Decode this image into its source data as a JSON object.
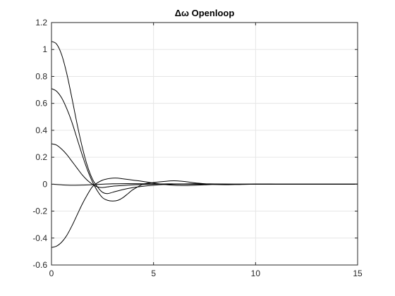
{
  "chart_data": {
    "type": "line",
    "title": "Δω Openloop",
    "xlabel": "",
    "ylabel": "",
    "xlim": [
      0,
      15
    ],
    "ylim": [
      -0.6,
      1.2
    ],
    "xticks": [
      0,
      5,
      10,
      15
    ],
    "yticks": [
      -0.6,
      -0.4,
      -0.2,
      0,
      0.2,
      0.4,
      0.6,
      0.8,
      1,
      1.2
    ],
    "xtick_labels": [
      "0",
      "5",
      "10",
      "15"
    ],
    "ytick_labels": [
      "-0.6",
      "-0.4",
      "-0.2",
      "0",
      "0.2",
      "0.4",
      "0.6",
      "0.8",
      "1",
      "1.2"
    ],
    "grid": true,
    "box": true,
    "line_color": "#000000",
    "series": [
      {
        "x": [
          0,
          0.25,
          0.5,
          0.75,
          1,
          1.25,
          1.5,
          1.75,
          2,
          2.25,
          2.5,
          2.75,
          3,
          3.5,
          4,
          4.5,
          5,
          5.5,
          6,
          7,
          8,
          9,
          10,
          11,
          12,
          13,
          14,
          15
        ],
        "values": [
          1.06,
          1.04,
          0.96,
          0.82,
          0.64,
          0.45,
          0.28,
          0.14,
          0.04,
          -0.02,
          -0.06,
          -0.07,
          -0.06,
          -0.04,
          -0.025,
          -0.015,
          -0.008,
          -0.003,
          0.0,
          0.003,
          0.002,
          0.0,
          -0.001,
          0.0,
          0.0,
          0.0,
          0.0,
          0.0
        ]
      },
      {
        "x": [
          0,
          0.25,
          0.5,
          0.75,
          1,
          1.25,
          1.5,
          1.75,
          2,
          2.25,
          2.5,
          2.75,
          3,
          3.25,
          3.5,
          3.75,
          4,
          4.5,
          5,
          5.5,
          6,
          6.5,
          7,
          7.5,
          8,
          8.5,
          9,
          10,
          11,
          12,
          13,
          14,
          15
        ],
        "values": [
          0.71,
          0.69,
          0.64,
          0.56,
          0.46,
          0.34,
          0.22,
          0.11,
          0.02,
          -0.05,
          -0.1,
          -0.12,
          -0.125,
          -0.12,
          -0.1,
          -0.07,
          -0.04,
          0.0,
          0.012,
          0.02,
          0.025,
          0.02,
          0.01,
          0.003,
          -0.002,
          -0.004,
          -0.003,
          0.0,
          0.0,
          0.0,
          0.0,
          0.0,
          0.0
        ]
      },
      {
        "x": [
          0,
          0.25,
          0.5,
          0.75,
          1,
          1.25,
          1.5,
          1.75,
          2,
          2.25,
          2.5,
          2.75,
          3,
          3.5,
          4,
          4.5,
          5,
          5.5,
          6,
          7,
          8,
          9,
          10,
          11,
          12,
          13,
          14,
          15
        ],
        "values": [
          0.3,
          0.29,
          0.26,
          0.22,
          0.17,
          0.12,
          0.07,
          0.03,
          0.0,
          -0.02,
          -0.025,
          -0.02,
          -0.015,
          -0.01,
          -0.005,
          -0.002,
          0.0,
          0.002,
          0.002,
          0.001,
          0.0,
          0.0,
          0.0,
          0.0,
          0.0,
          0.0,
          0.0,
          0.0
        ]
      },
      {
        "x": [
          0,
          0.5,
          1,
          1.5,
          2,
          2.5,
          3,
          3.5,
          4,
          4.5,
          5,
          5.5,
          6,
          7,
          8,
          9,
          10,
          11,
          12,
          13,
          14,
          15
        ],
        "values": [
          0.0,
          -0.005,
          -0.008,
          -0.007,
          -0.004,
          0.0,
          0.003,
          0.004,
          0.004,
          0.003,
          0.002,
          0.001,
          0.0,
          0.0,
          0.0,
          0.0,
          0.0,
          0.0,
          0.0,
          0.0,
          0.0,
          0.0
        ]
      },
      {
        "x": [
          0,
          0.25,
          0.5,
          0.75,
          1,
          1.25,
          1.5,
          1.75,
          2,
          2.25,
          2.5,
          2.75,
          3,
          3.25,
          3.5,
          3.75,
          4,
          4.5,
          5,
          5.5,
          6,
          6.5,
          7,
          7.5,
          8,
          9,
          10,
          11,
          12,
          13,
          14,
          15
        ],
        "values": [
          -0.47,
          -0.46,
          -0.43,
          -0.38,
          -0.31,
          -0.23,
          -0.15,
          -0.08,
          -0.02,
          0.01,
          0.03,
          0.04,
          0.045,
          0.045,
          0.04,
          0.035,
          0.03,
          0.02,
          0.008,
          -0.002,
          -0.008,
          -0.01,
          -0.008,
          -0.005,
          -0.002,
          0.0,
          0.001,
          0.0,
          0.0,
          0.0,
          0.0,
          0.0
        ]
      }
    ]
  }
}
